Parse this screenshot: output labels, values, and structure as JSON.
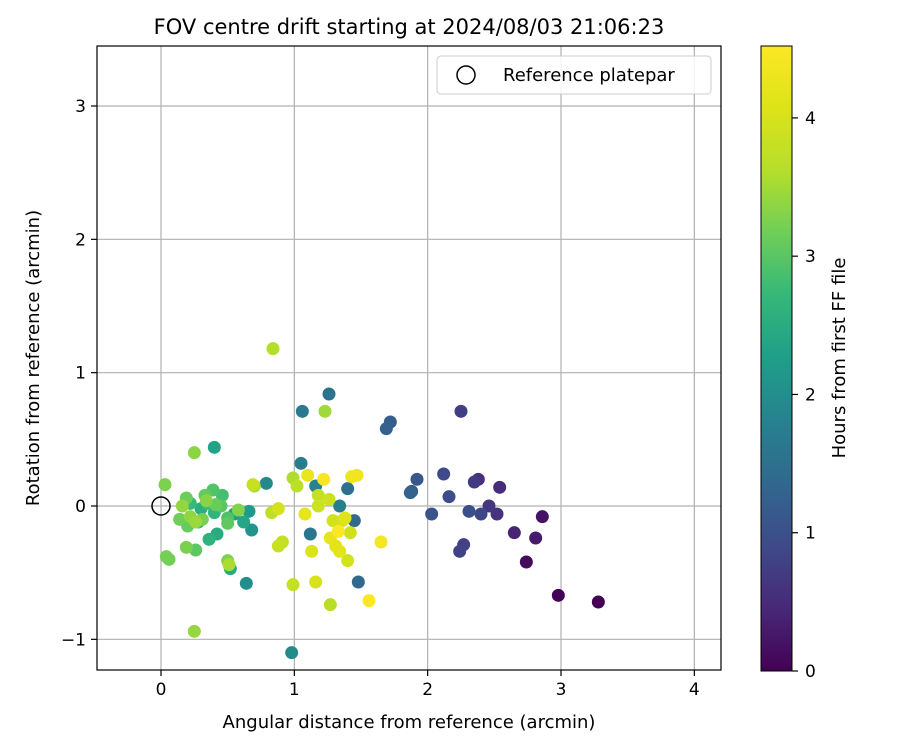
{
  "chart_data": {
    "type": "scatter",
    "title": "FOV centre drift starting at 2024/08/03 21:06:23",
    "xlabel": "Angular distance from reference (arcmin)",
    "ylabel": "Rotation from reference (arcmin)",
    "xlim": [
      -0.48,
      4.2
    ],
    "ylim": [
      -1.23,
      3.45
    ],
    "xticks": [
      0,
      1,
      2,
      3,
      4
    ],
    "yticks": [
      -1,
      0,
      1,
      2,
      3
    ],
    "xtick_labels": [
      "0",
      "1",
      "2",
      "3",
      "4"
    ],
    "ytick_labels": [
      "−1",
      "0",
      "1",
      "2",
      "3"
    ],
    "grid": true,
    "legend": {
      "placement": "top-right",
      "entries": [
        "Reference platepar"
      ]
    },
    "reference_point": {
      "name": "Reference platepar",
      "x": 0,
      "y": 0,
      "marker": "open-circle"
    },
    "colorbar": {
      "label": "Hours from first FF file",
      "colormap": "viridis",
      "range": [
        0,
        4.52
      ],
      "ticks": [
        0,
        1,
        2,
        3,
        4
      ],
      "tick_labels": [
        "0",
        "1",
        "2",
        "3",
        "4"
      ]
    },
    "series": [
      {
        "color_variable": "Hours from first FF file",
        "points": [
          [
            3.28,
            -0.72,
            0.0
          ],
          [
            2.98,
            -0.67,
            0.05
          ],
          [
            2.74,
            -0.42,
            0.1
          ],
          [
            2.86,
            -0.08,
            0.2
          ],
          [
            2.81,
            -0.24,
            0.3
          ],
          [
            2.65,
            -0.2,
            0.4
          ],
          [
            2.54,
            0.14,
            0.5
          ],
          [
            2.38,
            0.2,
            0.55
          ],
          [
            2.52,
            -0.06,
            0.6
          ],
          [
            2.46,
            0.0,
            0.65
          ],
          [
            2.35,
            0.18,
            0.7
          ],
          [
            2.25,
            0.71,
            0.75
          ],
          [
            2.27,
            -0.29,
            0.78
          ],
          [
            2.24,
            -0.34,
            0.8
          ],
          [
            2.4,
            -0.06,
            0.85
          ],
          [
            2.12,
            0.24,
            0.9
          ],
          [
            2.16,
            0.07,
            0.95
          ],
          [
            2.31,
            -0.04,
            1.0
          ],
          [
            2.03,
            -0.06,
            1.05
          ],
          [
            1.92,
            0.2,
            1.1
          ],
          [
            1.88,
            0.11,
            1.15
          ],
          [
            1.72,
            0.63,
            1.2
          ],
          [
            1.69,
            0.58,
            1.25
          ],
          [
            1.87,
            0.1,
            1.3
          ],
          [
            1.48,
            -0.57,
            1.35
          ],
          [
            1.45,
            -0.11,
            1.4
          ],
          [
            1.4,
            0.13,
            1.5
          ],
          [
            1.26,
            0.84,
            1.55
          ],
          [
            1.12,
            -0.21,
            1.6
          ],
          [
            1.06,
            0.71,
            1.65
          ],
          [
            1.05,
            0.32,
            1.7
          ],
          [
            1.34,
            0.0,
            1.75
          ],
          [
            1.16,
            0.15,
            1.8
          ],
          [
            0.79,
            0.17,
            1.9
          ],
          [
            0.98,
            -1.1,
            1.95
          ],
          [
            0.64,
            -0.58,
            2.0
          ],
          [
            0.68,
            -0.18,
            2.1
          ],
          [
            0.66,
            -0.04,
            2.2
          ],
          [
            0.55,
            -0.06,
            2.3
          ],
          [
            0.4,
            0.44,
            2.35
          ],
          [
            0.62,
            -0.12,
            2.4
          ],
          [
            0.52,
            -0.47,
            2.45
          ],
          [
            0.42,
            -0.21,
            2.5
          ],
          [
            0.3,
            -0.02,
            2.55
          ],
          [
            0.36,
            -0.25,
            2.6
          ],
          [
            0.4,
            -0.05,
            2.65
          ],
          [
            0.28,
            -0.12,
            2.7
          ],
          [
            0.22,
            0.02,
            2.75
          ],
          [
            0.35,
            0.02,
            2.8
          ],
          [
            0.46,
            0.08,
            2.85
          ],
          [
            0.5,
            -0.09,
            2.9
          ],
          [
            0.39,
            0.12,
            2.95
          ],
          [
            0.45,
            0.0,
            3.0
          ],
          [
            0.26,
            -0.33,
            3.02
          ],
          [
            0.5,
            -0.13,
            3.05
          ],
          [
            0.33,
            0.08,
            3.08
          ],
          [
            0.2,
            -0.15,
            3.1
          ],
          [
            0.41,
            0.01,
            3.12
          ],
          [
            0.19,
            0.06,
            3.14
          ],
          [
            0.14,
            -0.1,
            3.16
          ],
          [
            0.06,
            -0.4,
            3.18
          ],
          [
            0.04,
            -0.38,
            3.2
          ],
          [
            0.31,
            -0.1,
            3.22
          ],
          [
            0.19,
            -0.31,
            3.24
          ],
          [
            0.03,
            0.16,
            3.26
          ],
          [
            0.5,
            -0.41,
            3.28
          ],
          [
            0.58,
            -0.03,
            3.3
          ],
          [
            0.34,
            0.04,
            3.32
          ],
          [
            0.25,
            0.4,
            3.35
          ],
          [
            0.22,
            -0.08,
            3.38
          ],
          [
            0.16,
            0.0,
            3.4
          ],
          [
            0.25,
            -0.94,
            3.42
          ],
          [
            0.26,
            -0.12,
            3.45
          ],
          [
            1.23,
            0.71,
            3.48
          ],
          [
            0.7,
            0.15,
            3.5
          ],
          [
            0.51,
            -0.44,
            3.55
          ],
          [
            0.99,
            0.21,
            3.58
          ],
          [
            0.84,
            1.18,
            3.62
          ],
          [
            1.27,
            -0.74,
            3.65
          ],
          [
            1.02,
            0.15,
            3.7
          ],
          [
            0.83,
            -0.05,
            3.72
          ],
          [
            0.91,
            -0.27,
            3.75
          ],
          [
            0.99,
            -0.59,
            3.78
          ],
          [
            1.18,
            0.08,
            3.8
          ],
          [
            0.69,
            0.16,
            3.82
          ],
          [
            0.88,
            -0.3,
            3.84
          ],
          [
            1.18,
            0.0,
            3.86
          ],
          [
            1.26,
            0.05,
            3.88
          ],
          [
            1.42,
            -0.2,
            3.9
          ],
          [
            1.29,
            -0.11,
            3.92
          ],
          [
            0.88,
            -0.02,
            3.94
          ],
          [
            1.4,
            -0.41,
            3.96
          ],
          [
            1.36,
            -0.11,
            3.98
          ],
          [
            1.16,
            -0.57,
            4.0
          ],
          [
            1.13,
            -0.34,
            4.05
          ],
          [
            1.38,
            -0.09,
            4.1
          ],
          [
            1.34,
            -0.34,
            4.15
          ],
          [
            1.31,
            -0.3,
            4.18
          ],
          [
            1.27,
            -0.24,
            4.2
          ],
          [
            1.08,
            -0.06,
            4.22
          ],
          [
            1.1,
            0.23,
            4.25
          ],
          [
            1.43,
            0.22,
            4.3
          ],
          [
            1.47,
            0.23,
            4.35
          ],
          [
            1.65,
            -0.27,
            4.4
          ],
          [
            1.22,
            0.2,
            4.45
          ],
          [
            1.56,
            -0.71,
            4.5
          ],
          [
            1.33,
            -0.19,
            4.52
          ]
        ]
      }
    ]
  }
}
